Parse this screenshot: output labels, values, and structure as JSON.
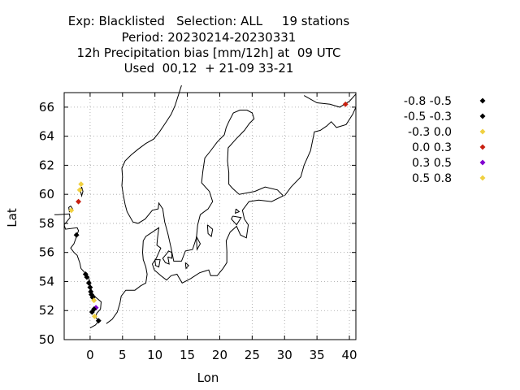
{
  "chart_data": {
    "type": "scatter",
    "title": [
      "Exp: Blacklisted   Selection: ALL     19 stations",
      "Period: 20230214-20230331",
      "12h Precipitation bias [mm/12h] at  09 UTC",
      "Used  00,12  + 21-09 33-21"
    ],
    "xlabel": "Lon",
    "ylabel": "Lat",
    "xlim": [
      -4,
      41
    ],
    "ylim": [
      50,
      67
    ],
    "xticks": [
      "0",
      "5",
      "10",
      "15",
      "20",
      "25",
      "30",
      "35",
      "40"
    ],
    "yticks": [
      "50",
      "52",
      "54",
      "56",
      "58",
      "60",
      "62",
      "64",
      "66"
    ],
    "grid": true,
    "legend_position": "right",
    "legend": [
      {
        "label": "-0.8 -0.5",
        "color": "#000000"
      },
      {
        "label": "-0.5 -0.3",
        "color": "#000000"
      },
      {
        "label": "-0.3 0.0",
        "color": "#f0d040"
      },
      {
        "label": "0.0 0.3",
        "color": "#c82010"
      },
      {
        "label": "0.3 0.5",
        "color": "#8000d0"
      },
      {
        "label": "0.5 0.8",
        "color": "#f0d040"
      }
    ],
    "points": [
      {
        "lon": -2.9,
        "lat": 58.9,
        "cls": 2
      },
      {
        "lon": -1.4,
        "lat": 60.7,
        "cls": 2
      },
      {
        "lon": -1.6,
        "lat": 60.3,
        "cls": 2
      },
      {
        "lon": -1.8,
        "lat": 59.5,
        "cls": 3
      },
      {
        "lon": -2.1,
        "lat": 57.2,
        "cls": 0
      },
      {
        "lon": -0.7,
        "lat": 54.5,
        "cls": 0
      },
      {
        "lon": -0.5,
        "lat": 54.3,
        "cls": 1
      },
      {
        "lon": -0.2,
        "lat": 53.9,
        "cls": 0
      },
      {
        "lon": 0.0,
        "lat": 53.6,
        "cls": 1
      },
      {
        "lon": 0.1,
        "lat": 53.3,
        "cls": 0
      },
      {
        "lon": 0.2,
        "lat": 53.1,
        "cls": 1
      },
      {
        "lon": 0.4,
        "lat": 52.9,
        "cls": 1
      },
      {
        "lon": 0.6,
        "lat": 52.7,
        "cls": 2
      },
      {
        "lon": 0.9,
        "lat": 52.2,
        "cls": 4
      },
      {
        "lon": 0.6,
        "lat": 52.1,
        "cls": 0
      },
      {
        "lon": 0.3,
        "lat": 51.9,
        "cls": 1
      },
      {
        "lon": 0.7,
        "lat": 51.6,
        "cls": 2
      },
      {
        "lon": 1.3,
        "lat": 51.3,
        "cls": 0
      },
      {
        "lon": 39.4,
        "lat": 66.2,
        "cls": 3
      }
    ]
  }
}
